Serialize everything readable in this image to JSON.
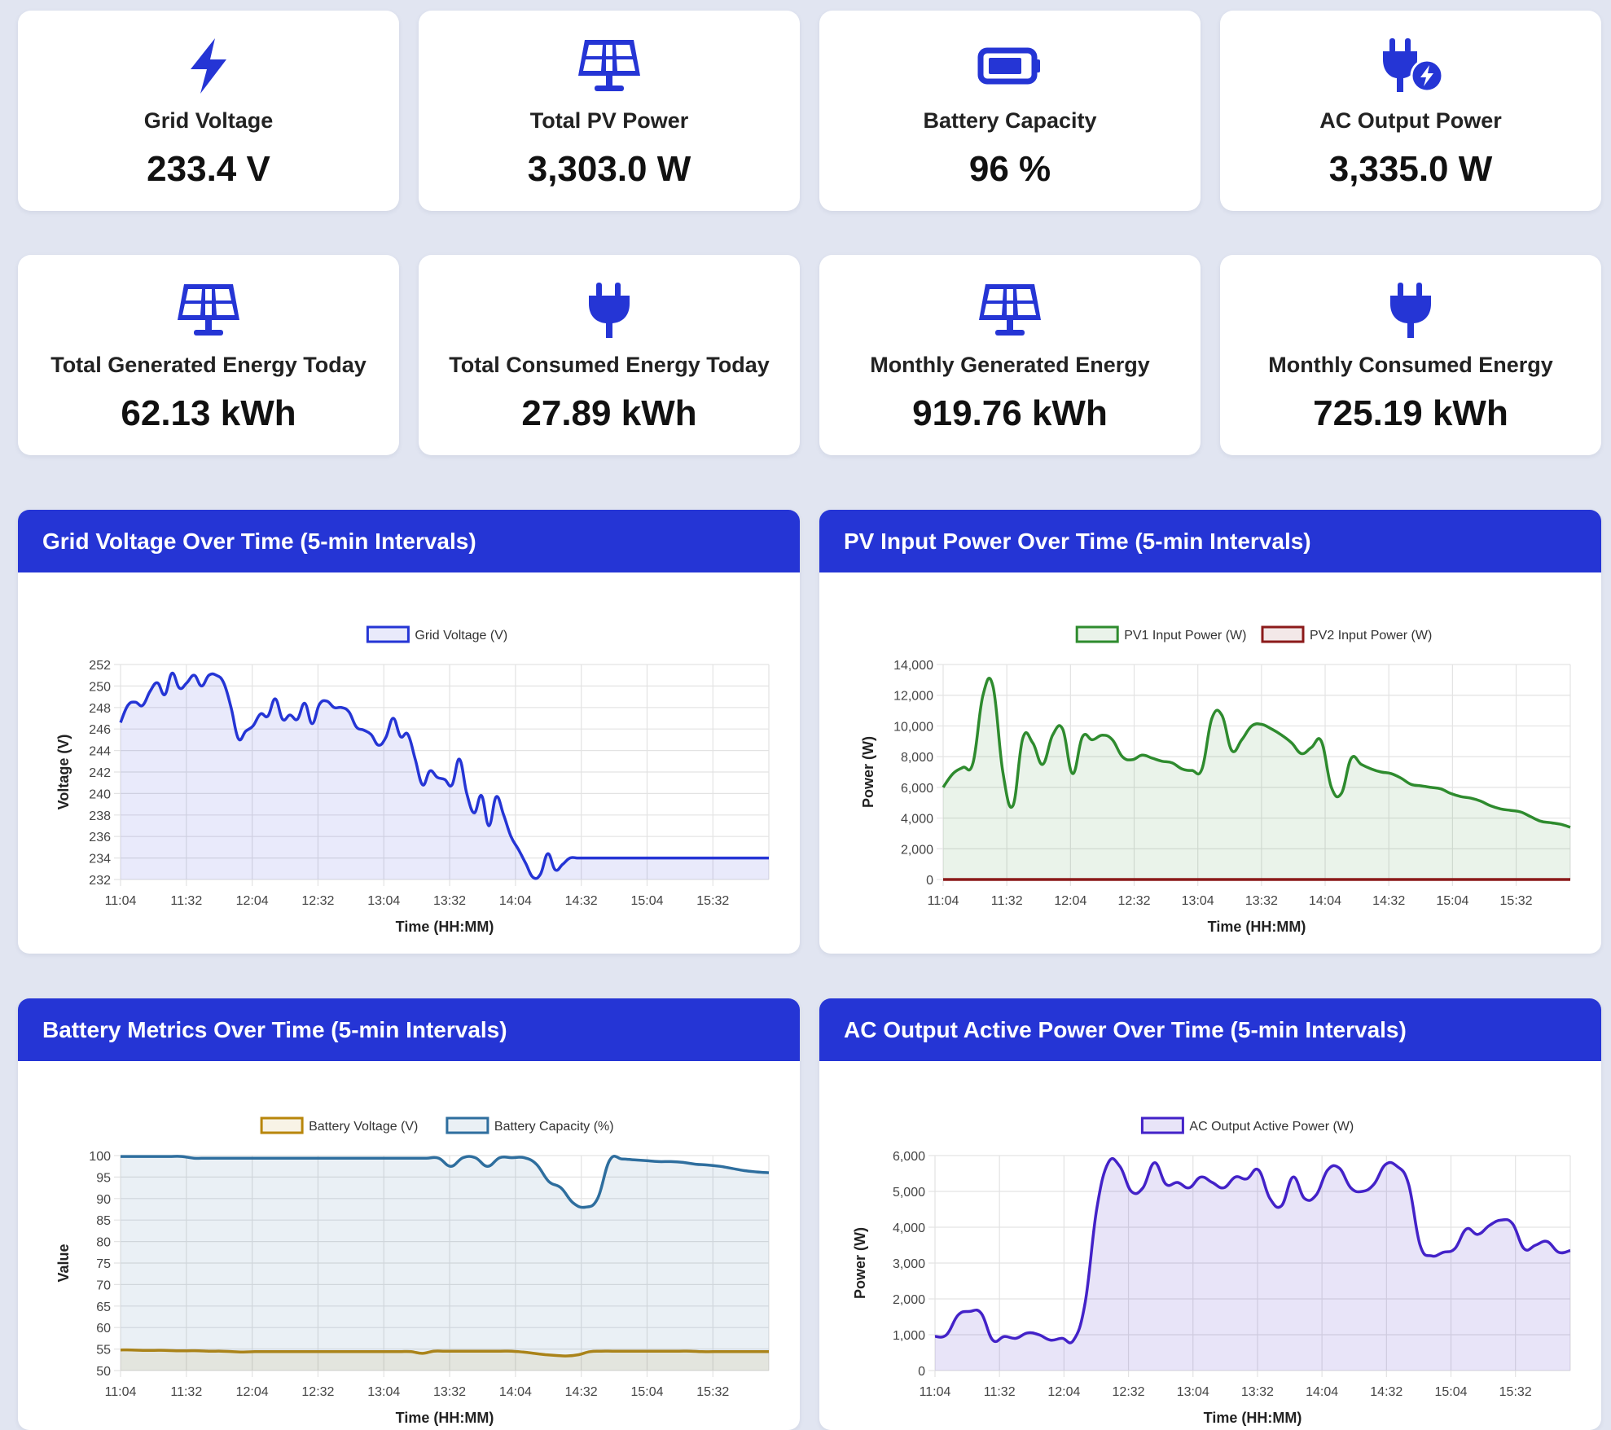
{
  "colors": {
    "accent": "#2535d5",
    "background": "#e1e5f1",
    "card": "#ffffff"
  },
  "stats": [
    {
      "icon": "bolt-icon",
      "label": "Grid Voltage",
      "value": "233.4 V"
    },
    {
      "icon": "solar-panel-icon",
      "label": "Total PV Power",
      "value": "3,303.0 W"
    },
    {
      "icon": "battery-icon",
      "label": "Battery Capacity",
      "value": "96 %"
    },
    {
      "icon": "plug-bolt-icon",
      "label": "AC Output Power",
      "value": "3,335.0 W"
    },
    {
      "icon": "solar-panel-icon",
      "label": "Total Generated Energy Today",
      "value": "62.13 kWh"
    },
    {
      "icon": "plug-icon",
      "label": "Total Consumed Energy Today",
      "value": "27.89 kWh"
    },
    {
      "icon": "solar-panel-icon",
      "label": "Monthly Generated Energy",
      "value": "919.76 kWh"
    },
    {
      "icon": "plug-icon",
      "label": "Monthly Consumed Energy",
      "value": "725.19 kWh"
    }
  ],
  "panels": [
    {
      "title": "Grid Voltage Over Time (5-min Intervals)"
    },
    {
      "title": "PV Input Power Over Time (5-min Intervals)"
    },
    {
      "title": "Battery Metrics Over Time (5-min Intervals)"
    },
    {
      "title": "AC Output Active Power Over Time (5-min Intervals)"
    }
  ],
  "chart_data": [
    {
      "type": "area",
      "xlabel": "Time (HH:MM)",
      "ylabel": "Voltage (V)",
      "ylim": [
        232,
        252
      ],
      "yticks": [
        232,
        234,
        236,
        238,
        240,
        242,
        244,
        246,
        248,
        250,
        252
      ],
      "xticks": [
        "11:04",
        "11:32",
        "12:04",
        "12:32",
        "13:04",
        "13:32",
        "14:04",
        "14:32",
        "15:04",
        "15:32"
      ],
      "xrange": [
        0,
        44
      ],
      "grid": true,
      "legend": "top",
      "series": [
        {
          "name": "Grid Voltage (V)",
          "color": "#2535d5",
          "fill": "rgba(37,53,213,0.10)",
          "x": [
            0,
            0.5,
            1,
            1.5,
            2,
            2.5,
            3,
            3.5,
            4,
            4.5,
            5,
            5.5,
            6,
            6.5,
            7,
            7.5,
            8,
            8.5,
            9,
            9.5,
            10,
            10.5,
            11,
            11.5,
            12,
            12.5,
            13,
            13.5,
            14,
            14.5,
            15,
            15.5,
            16,
            16.5,
            17,
            17.5,
            18,
            18.5,
            19,
            19.5,
            20,
            20.5,
            21,
            21.5,
            22,
            22.5,
            23,
            23.5,
            24,
            24.5,
            25,
            25.5,
            26,
            26.5,
            27,
            27.5,
            28,
            28.5,
            29,
            29.5,
            30,
            30.5,
            31,
            31.5,
            32,
            32.5,
            33,
            33.5,
            34,
            34.5,
            35,
            35.5,
            36,
            36.5,
            37,
            37.5,
            38,
            38.5,
            39,
            39.5,
            40,
            40.5,
            41,
            41.5,
            42,
            42.5,
            43,
            43.5,
            44
          ],
          "values": [
            246.6,
            248.2,
            248.5,
            248.2,
            249.5,
            250.3,
            249.2,
            251.2,
            249.8,
            250.3,
            251.0,
            250.0,
            251.0,
            251.0,
            250.3,
            248.0,
            245.1,
            245.8,
            246.3,
            247.4,
            247.2,
            248.8,
            246.9,
            247.3,
            246.9,
            248.4,
            246.5,
            248.3,
            248.6,
            248.0,
            248.0,
            247.6,
            246.2,
            245.9,
            245.5,
            244.5,
            245.2,
            247.0,
            245.3,
            245.5,
            243.2,
            240.8,
            242.1,
            241.5,
            241.3,
            240.8,
            243.2,
            240.0,
            238.2,
            239.8,
            237.0,
            239.7,
            238.0,
            236.0,
            234.8,
            233.5,
            232.2,
            232.5,
            234.4,
            232.9,
            233.4,
            234.0,
            234.0,
            234.0,
            234.0,
            234.0,
            234.0,
            234.0,
            234.0,
            234.0,
            234.0,
            234.0,
            234.0,
            234.0,
            234.0,
            234.0,
            234.0,
            234.0,
            234.0,
            234.0,
            234.0,
            234.0,
            234.0,
            234.0,
            234.0,
            234.0,
            234.0,
            234.0,
            234.0
          ]
        }
      ]
    },
    {
      "type": "area",
      "xlabel": "Time (HH:MM)",
      "ylabel": "Power (W)",
      "ylim": [
        0,
        14000
      ],
      "yticks": [
        0,
        2000,
        4000,
        6000,
        8000,
        10000,
        12000,
        14000
      ],
      "ytick_labels": [
        "0",
        "2,000",
        "4,000",
        "6,000",
        "8,000",
        "10,000",
        "12,000",
        "14,000"
      ],
      "xticks": [
        "11:04",
        "11:32",
        "12:04",
        "12:32",
        "13:04",
        "13:32",
        "14:04",
        "14:32",
        "15:04",
        "15:32"
      ],
      "grid": true,
      "legend": "top",
      "series": [
        {
          "name": "PV1 Input Power (W)",
          "color": "#2e8b2e",
          "fill": "rgba(46,139,46,0.10)",
          "values": [
            6000,
            6900,
            7300,
            7600,
            12000,
            12600,
            7000,
            4800,
            9200,
            8900,
            7500,
            9400,
            9800,
            6900,
            9300,
            9100,
            9400,
            9100,
            8000,
            7800,
            8100,
            7900,
            7700,
            7600,
            7200,
            7100,
            7200,
            10500,
            10700,
            8400,
            9100,
            10000,
            10100,
            9800,
            9400,
            8900,
            8200,
            8600,
            9000,
            6000,
            5600,
            7900,
            7500,
            7200,
            7000,
            6900,
            6600,
            6200,
            6100,
            6000,
            5900,
            5600,
            5400,
            5300,
            5100,
            4800,
            4600,
            4500,
            4400,
            4100,
            3800,
            3700,
            3600,
            3400
          ]
        },
        {
          "name": "PV2 Input Power (W)",
          "color": "#8b1a1a",
          "fill": "rgba(139,26,26,0.10)",
          "values": [
            0,
            0,
            0,
            0,
            0,
            0,
            0,
            0,
            0,
            0,
            0,
            0,
            0,
            0,
            0,
            0,
            0,
            0,
            0,
            0,
            0,
            0,
            0,
            0,
            0,
            0,
            0,
            0,
            0,
            0,
            0,
            0,
            0,
            0,
            0,
            0,
            0,
            0,
            0,
            0,
            0,
            0,
            0,
            0,
            0,
            0,
            0,
            0,
            0,
            0,
            0,
            0,
            0,
            0,
            0,
            0,
            0,
            0,
            0,
            0,
            0,
            0,
            0,
            0
          ]
        }
      ]
    },
    {
      "type": "area",
      "xlabel": "Time (HH:MM)",
      "ylabel": "Value",
      "ylim": [
        50,
        100
      ],
      "yticks": [
        50,
        55,
        60,
        65,
        70,
        75,
        80,
        85,
        90,
        95,
        100
      ],
      "xticks": [
        "11:04",
        "11:32",
        "12:04",
        "12:32",
        "13:04",
        "13:32",
        "14:04",
        "14:32",
        "15:04",
        "15:32"
      ],
      "grid": true,
      "legend": "top",
      "series": [
        {
          "name": "Battery Voltage (V)",
          "color": "#b8860b",
          "fill": "rgba(184,134,11,0.10)",
          "values": [
            54.8,
            54.8,
            54.7,
            54.7,
            54.7,
            54.6,
            54.6,
            54.6,
            54.5,
            54.5,
            54.4,
            54.3,
            54.4,
            54.4,
            54.4,
            54.4,
            54.4,
            54.4,
            54.4,
            54.4,
            54.4,
            54.4,
            54.4,
            54.4,
            54.4,
            54.4,
            54.4,
            54.0,
            54.5,
            54.5,
            54.5,
            54.5,
            54.5,
            54.5,
            54.5,
            54.5,
            54.3,
            54.0,
            53.7,
            53.5,
            53.4,
            53.7,
            54.4,
            54.5,
            54.5,
            54.5,
            54.5,
            54.5,
            54.5,
            54.5,
            54.5,
            54.5,
            54.4,
            54.4,
            54.4,
            54.4,
            54.4,
            54.4,
            54.4
          ]
        },
        {
          "name": "Battery Capacity (%)",
          "color": "#2e6e9e",
          "fill": "rgba(46,110,158,0.10)",
          "values": [
            99.8,
            99.8,
            99.8,
            99.8,
            99.8,
            99.8,
            99.4,
            99.4,
            99.4,
            99.4,
            99.4,
            99.4,
            99.4,
            99.4,
            99.4,
            99.4,
            99.4,
            99.4,
            99.4,
            99.4,
            99.4,
            99.4,
            99.4,
            99.4,
            99.4,
            99.4,
            99.4,
            97.5,
            99.5,
            99.5,
            97.5,
            99.5,
            99.5,
            99.5,
            98.0,
            94.0,
            92.5,
            89.0,
            88.0,
            90.0,
            99.0,
            99.2,
            99.0,
            98.8,
            98.6,
            98.6,
            98.4,
            98.0,
            97.8,
            97.5,
            97.0,
            96.5,
            96.2,
            96.0
          ]
        }
      ]
    },
    {
      "type": "area",
      "xlabel": "Time (HH:MM)",
      "ylabel": "Power (W)",
      "ylim": [
        0,
        6000
      ],
      "yticks": [
        0,
        1000,
        2000,
        3000,
        4000,
        5000,
        6000
      ],
      "ytick_labels": [
        "0",
        "1,000",
        "2,000",
        "3,000",
        "4,000",
        "5,000",
        "6,000"
      ],
      "xticks": [
        "11:04",
        "11:32",
        "12:04",
        "12:32",
        "13:04",
        "13:32",
        "14:04",
        "14:32",
        "15:04",
        "15:32"
      ],
      "grid": true,
      "legend": "top",
      "series": [
        {
          "name": "AC Output Active Power (W)",
          "color": "#4322c8",
          "fill": "rgba(67,34,200,0.12)",
          "values": [
            950,
            1000,
            1550,
            1650,
            1600,
            850,
            950,
            900,
            1050,
            1000,
            850,
            900,
            850,
            1900,
            4500,
            5800,
            5700,
            5000,
            5100,
            5800,
            5200,
            5250,
            5100,
            5400,
            5250,
            5100,
            5400,
            5350,
            5600,
            4800,
            4600,
            5400,
            4800,
            4900,
            5600,
            5650,
            5100,
            5000,
            5200,
            5750,
            5700,
            5200,
            3500,
            3200,
            3300,
            3400,
            3950,
            3800,
            4050,
            4200,
            4100,
            3400,
            3500,
            3600,
            3300,
            3350
          ]
        }
      ]
    }
  ]
}
